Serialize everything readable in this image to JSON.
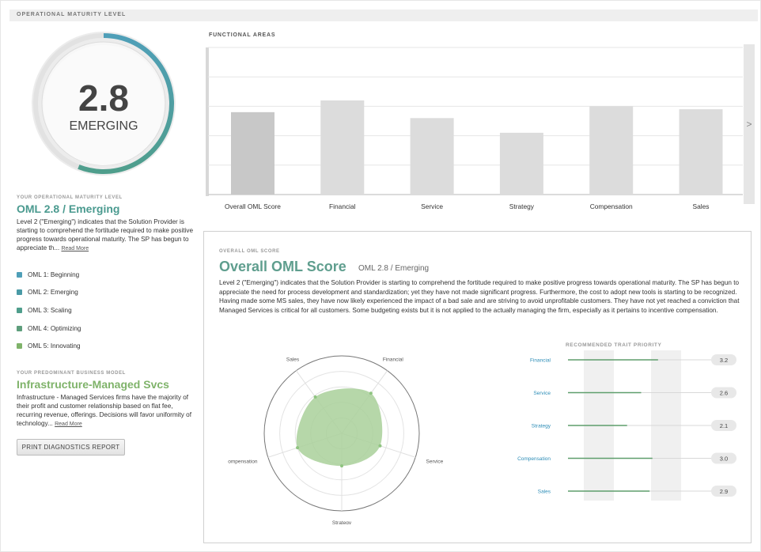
{
  "header": {
    "title": "OPERATIONAL MATURITY LEVEL"
  },
  "gauge": {
    "score": "2.8",
    "label": "EMERGING",
    "fraction": 0.56,
    "color": "#4f9fb8",
    "color2": "#4f9e8c"
  },
  "oml": {
    "eyebrow": "YOUR OPERATIONAL MATURITY LEVEL",
    "title": "OML 2.8 / Emerging",
    "text": "Level 2 (\"Emerging\") indicates that the Solution Provider is starting to comprehend the fortitude required to make positive progress towards operational maturity. The SP has begun to appreciate th...",
    "read_more": "Read More"
  },
  "levels": [
    {
      "label": "OML 1: Beginning",
      "color": "#4f9fb8"
    },
    {
      "label": "OML 2: Emerging",
      "color": "#4a9aa6"
    },
    {
      "label": "OML 3: Scaling",
      "color": "#4f9e8c"
    },
    {
      "label": "OML 4: Optimizing",
      "color": "#5e9e7c"
    },
    {
      "label": "OML 5: Innovating",
      "color": "#7fb36a"
    }
  ],
  "business_model": {
    "eyebrow": "YOUR PREDOMINANT BUSINESS MODEL",
    "title": "Infrastructure-Managed Svcs",
    "text": "Infrastructure - Managed Services firms have the majority of their profit and customer relationship based on flat fee, recurring revenue, offerings. Decisions will favor uniformity of technology...",
    "read_more": "Read More"
  },
  "print_button": "PRINT DIAGNOSTICS REPORT",
  "functional_areas": {
    "title": "FUNCTIONAL AREAS",
    "scroll_icon": "chevron-right-icon",
    "scroll_glyph": ">"
  },
  "chart_data": [
    {
      "type": "bar",
      "categories": [
        "Overall OML Score",
        "Financial",
        "Service",
        "Strategy",
        "Compensation",
        "Sales"
      ],
      "values": [
        2.8,
        3.2,
        2.6,
        2.1,
        3.0,
        2.9
      ],
      "ylim": [
        0,
        5
      ],
      "grid": true,
      "bar_colors": [
        "#c8c8c8",
        "#dcdcdc",
        "#dcdcdc",
        "#dcdcdc",
        "#dcdcdc",
        "#dcdcdc"
      ]
    },
    {
      "type": "radar",
      "axes": [
        "Financial",
        "Service",
        "Strategy",
        "Compensation",
        "Sales"
      ],
      "values": [
        3.2,
        2.6,
        2.1,
        3.0,
        2.9
      ],
      "rmax": 5,
      "fill": "#a9d09a"
    },
    {
      "type": "bar",
      "title": "RECOMMENDED TRAIT PRIORITY",
      "categories": [
        "Financial",
        "Service",
        "Strategy",
        "Compensation",
        "Sales"
      ],
      "values": [
        3.2,
        2.6,
        2.1,
        3.0,
        2.9
      ],
      "value_labels": [
        "3.2",
        "2.6",
        "2.1",
        "3.0",
        "2.9"
      ],
      "xlim": [
        0,
        5.2
      ],
      "orientation": "horizontal"
    }
  ],
  "overall": {
    "eyebrow": "OVERALL OML SCORE",
    "title": "Overall OML Score",
    "subtitle": "OML 2.8 / Emerging",
    "text": "Level 2 (\"Emerging\") indicates that the Solution Provider is starting to comprehend the fortitude required to make positive progress towards operational maturity. The SP has begun to appreciate the need for process development and standardization; yet they have not made significant progress. Furthermore, the cost to adopt new tools is starting to be recognized. Having made some MS sales, they have now likely experienced the impact of a bad sale and are striving to avoid unprofitable customers. They have not yet reached a conviction that Managed Services is critical for all customers. Some budgeting exists but it is not applied to the actually managing the firm, especially as it pertains to incentive compensation."
  }
}
